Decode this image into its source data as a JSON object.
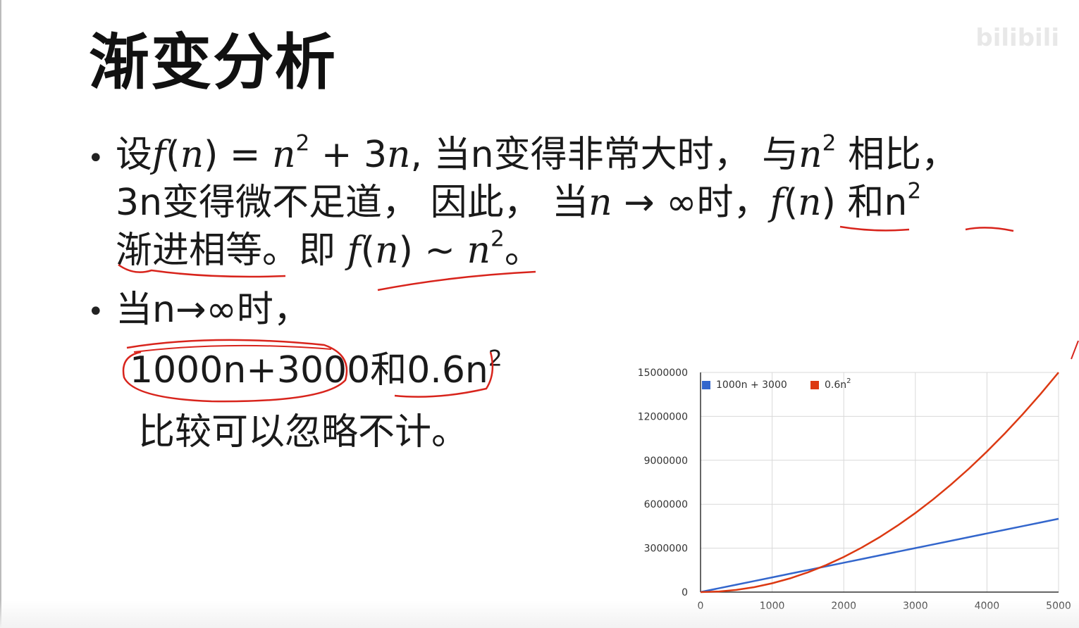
{
  "slide": {
    "title": "渐变分析",
    "watermark": "bilibili",
    "bullet1": {
      "l1_a": "设",
      "l1_f": "f",
      "l1_b": "(",
      "l1_n": "n",
      "l1_c": ") = ",
      "l1_n2": "n",
      "l1_exp": "2",
      "l1_d": " + 3",
      "l1_n3": "n",
      "l1_e": ", 当n变得非常大时， 与",
      "l1_n4": "n",
      "l1_exp2": "2",
      "l1_f2": " 相比，",
      "l2_a": "3n变得微不足道， 因此， 当",
      "l2_n": "n",
      "l2_b": " → ∞时，",
      "l2_f": "f",
      "l2_c": "(",
      "l2_n2": "n",
      "l2_d": ") 和n",
      "l2_exp": "2",
      "l3_a": "渐进相等。即 ",
      "l3_f": "f",
      "l3_b": "(",
      "l3_n": "n",
      "l3_c": ") ~ ",
      "l3_n2": "n",
      "l3_exp": "2",
      "l3_d": "。"
    },
    "bullet2": {
      "l1": "当n→∞时，",
      "l2_a": "1000n+3000和0.6n",
      "l2_exp": "2",
      "l3": "比较可以忽略不计。"
    },
    "colors": {
      "ink": "#d8241c",
      "series1": "#3366cc",
      "series2": "#dc3912",
      "grid": "#d9d9d9"
    }
  },
  "chart_data": {
    "type": "line",
    "x": [
      0,
      250,
      500,
      750,
      1000,
      1250,
      1500,
      1750,
      2000,
      2250,
      2500,
      2750,
      3000,
      3250,
      3500,
      3750,
      4000,
      4250,
      4500,
      4750,
      5000
    ],
    "series": [
      {
        "name": "1000n + 3000",
        "name_main": "1000n + 3000",
        "values": [
          3000,
          253000,
          503000,
          753000,
          1003000,
          1253000,
          1503000,
          1753000,
          2003000,
          2253000,
          2503000,
          2753000,
          3003000,
          3253000,
          3503000,
          3753000,
          4003000,
          4253000,
          4503000,
          4753000,
          5003000
        ]
      },
      {
        "name": "0.6n2",
        "name_main": "0.6n",
        "name_sup": "2",
        "values": [
          0,
          37500,
          150000,
          337500,
          600000,
          937500,
          1350000,
          1837500,
          2400000,
          3037500,
          3750000,
          4537500,
          5400000,
          6337500,
          7350000,
          8437500,
          9600000,
          10837500,
          12150000,
          13537500,
          15000000
        ]
      }
    ],
    "x_ticks": [
      "0",
      "1000",
      "2000",
      "3000",
      "4000",
      "5000"
    ],
    "y_ticks": [
      "0",
      "3000000",
      "6000000",
      "9000000",
      "12000000",
      "15000000"
    ],
    "xlim": [
      0,
      5000
    ],
    "ylim": [
      0,
      15000000
    ],
    "grid": true,
    "legend": "top-left"
  }
}
